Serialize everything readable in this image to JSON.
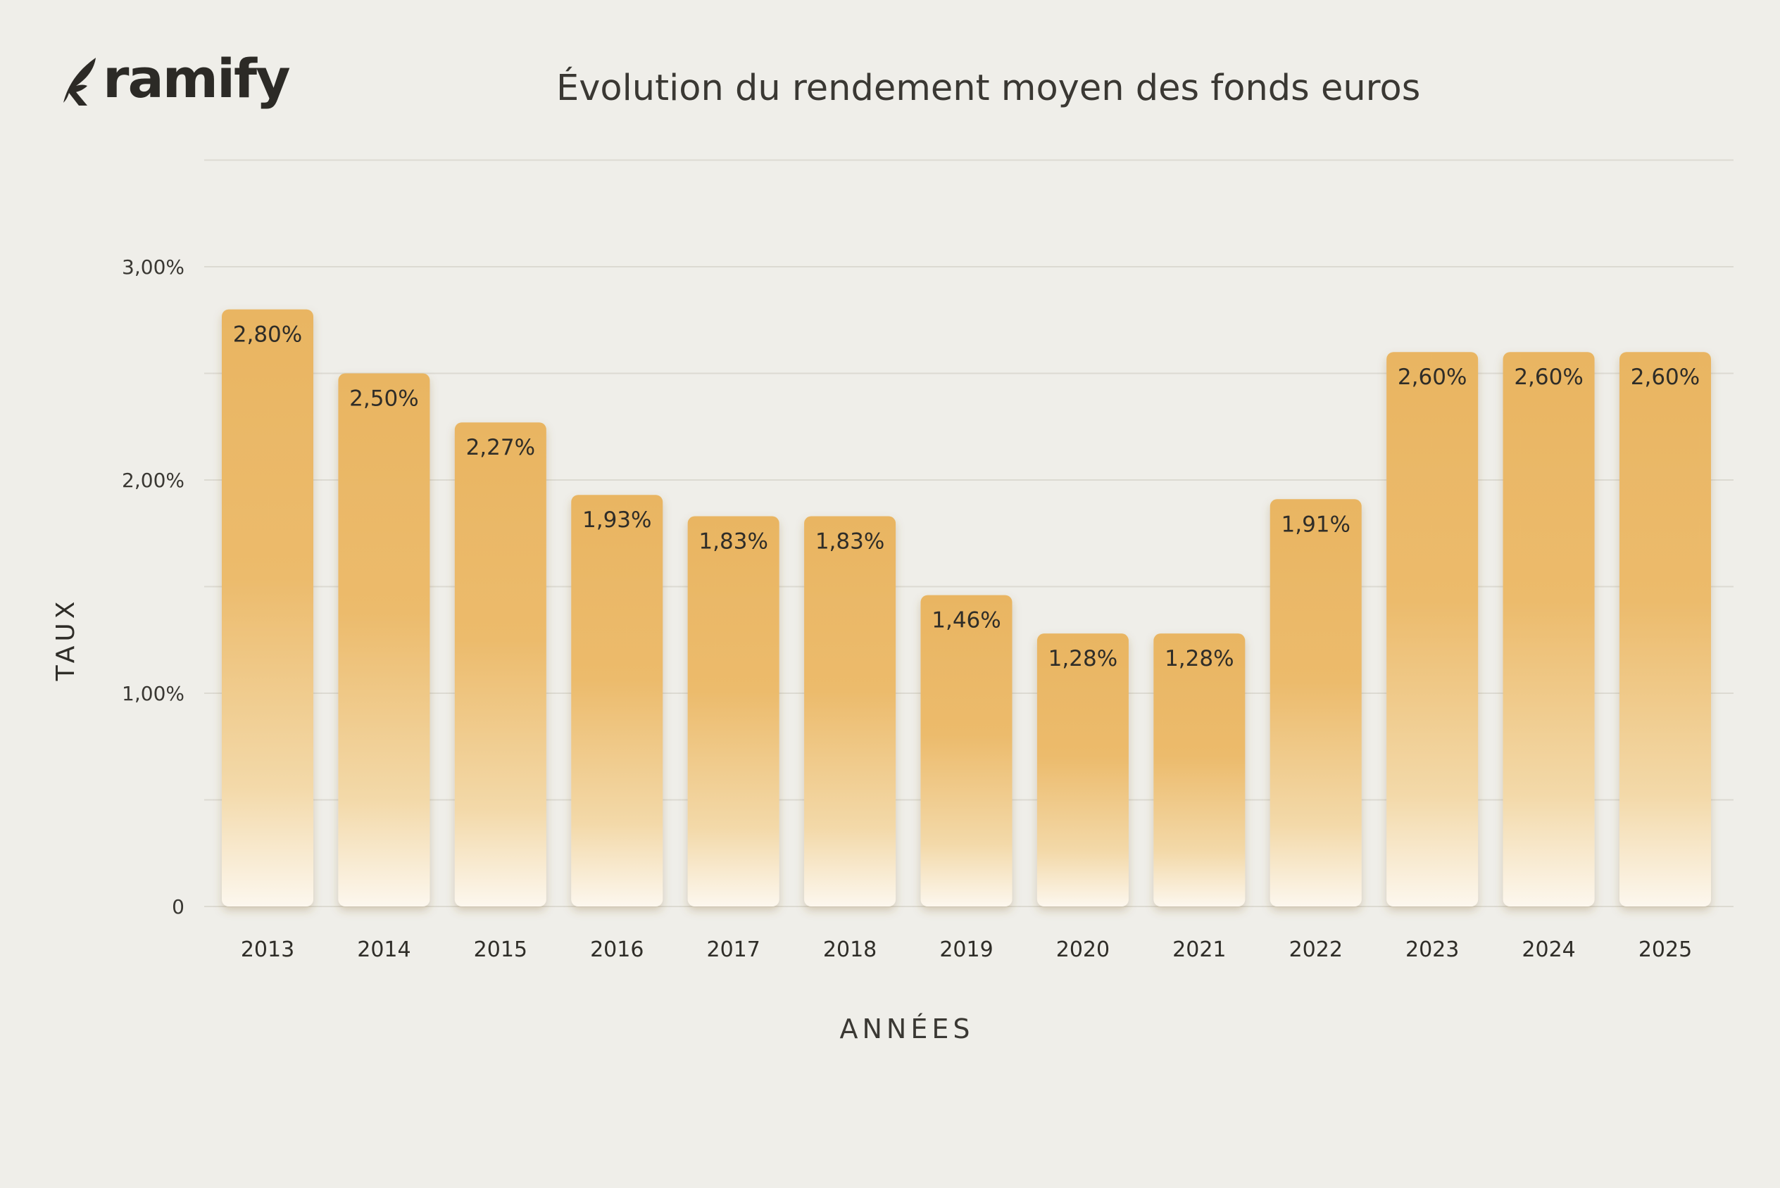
{
  "brand": {
    "name": "ramify",
    "icon": "leaf-r-icon"
  },
  "chart_data": {
    "type": "bar",
    "title": "Évolution du rendement moyen des fonds euros",
    "xlabel": "ANNÉES",
    "ylabel": "TAUX",
    "categories": [
      "2013",
      "2014",
      "2015",
      "2016",
      "2017",
      "2018",
      "2019",
      "2020",
      "2021",
      "2022",
      "2023",
      "2024",
      "2025"
    ],
    "values": [
      2.8,
      2.5,
      2.27,
      1.93,
      1.83,
      1.83,
      1.46,
      1.28,
      1.28,
      1.91,
      2.6,
      2.6,
      2.6
    ],
    "data_labels": [
      "2,80%",
      "2,50%",
      "2,27%",
      "1,93%",
      "1,83%",
      "1,83%",
      "1,46%",
      "1,28%",
      "1,28%",
      "1,91%",
      "2,60%",
      "2,60%",
      "2,60%"
    ],
    "y_ticks": [
      {
        "value": 0,
        "label": "0"
      },
      {
        "value": 1,
        "label": "1,00%"
      },
      {
        "value": 2,
        "label": "2,00%"
      },
      {
        "value": 3,
        "label": "3,00%"
      }
    ],
    "ylim": [
      0,
      3.5
    ],
    "grid": true,
    "colors": {
      "bar_top": "#e9b35f",
      "bar_bottom": "#fbf5ea",
      "grid": "#dcdad2"
    }
  }
}
